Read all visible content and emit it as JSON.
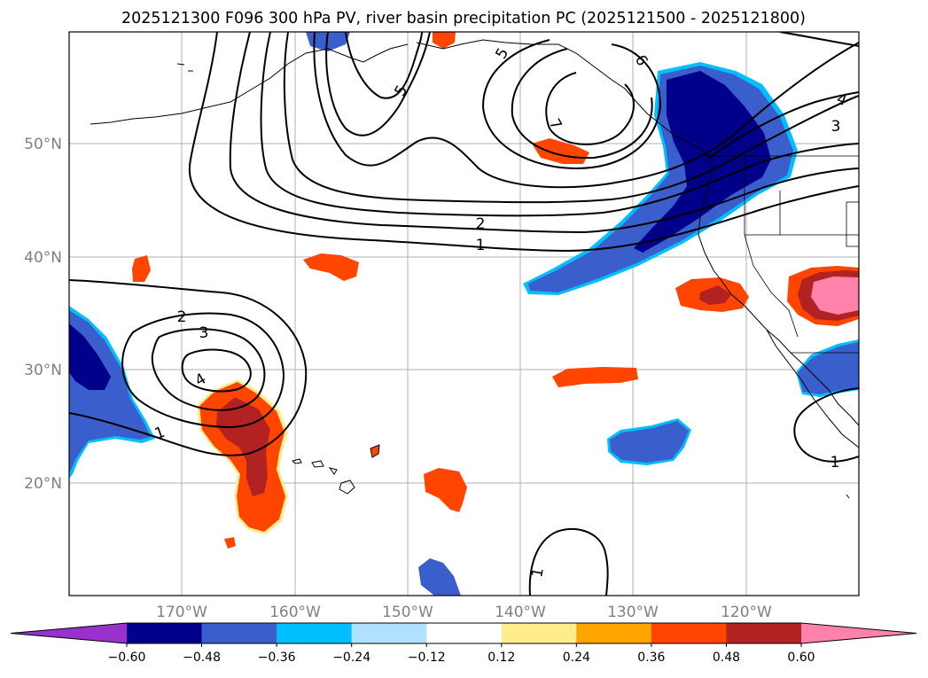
{
  "title": "2025121300 F096 300 hPa PV, river basin precipitation PC (2025121500 - 2025121800)",
  "map": {
    "lat_labels": [
      "50°N",
      "40°N",
      "30°N",
      "20°N"
    ],
    "lon_labels": [
      "170°W",
      "160°W",
      "150°W",
      "140°W",
      "130°W",
      "120°W"
    ],
    "contour_labels": [
      "5",
      "6",
      "7",
      "4",
      "3",
      "2",
      "1",
      "5",
      "2",
      "3",
      "4",
      "1",
      "1",
      "1"
    ]
  },
  "colorbar": {
    "colors": [
      "#9932cc",
      "#00008b",
      "#3a5fcd",
      "#00bfff",
      "#b0e2ff",
      "#ffffff",
      "#ffec8b",
      "#ffa500",
      "#ff4500",
      "#b22222",
      "#ff82ab"
    ],
    "labels": [
      "−0.60",
      "−0.48",
      "−0.36",
      "−0.24",
      "−0.12",
      "0.12",
      "0.24",
      "0.36",
      "0.48",
      "0.60"
    ]
  }
}
